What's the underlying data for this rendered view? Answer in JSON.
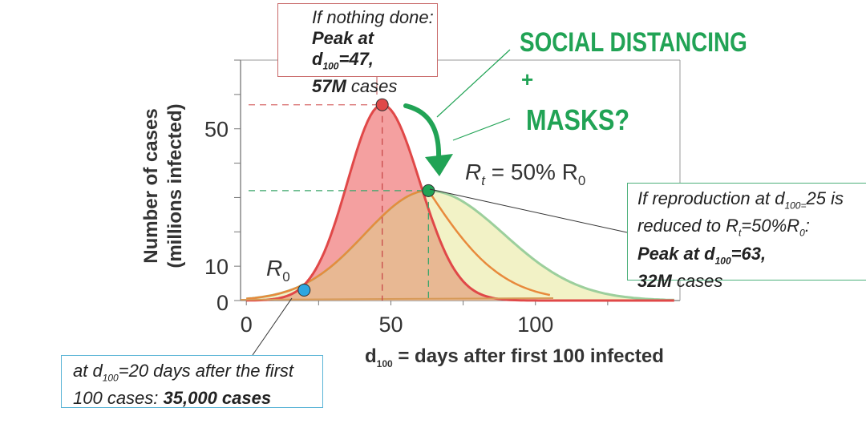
{
  "chart_data": {
    "type": "line",
    "xlabel_prefix": "d",
    "xlabel_sub": "100",
    "xlabel_rest": " = days after first 100 infected",
    "ylabel_line1": "Number of cases",
    "ylabel_line2": "(millions infected)",
    "xlim": [
      -2,
      150
    ],
    "ylim": [
      0,
      70
    ],
    "x_ticks": [
      0,
      50,
      100
    ],
    "y_ticks": [
      0,
      10,
      50
    ],
    "colors": {
      "nothing_done": "#e04848",
      "nothing_done_fill": "#f4a0a0",
      "reduced": "#9ccf9c",
      "reduced_fill": "#f2f2c6",
      "overlap": "#e8b893",
      "orange_curve": "#e88a3c",
      "green": "#21a355",
      "point_blue": "#2ea6e0"
    },
    "series": [
      {
        "key": "nothing_done",
        "peak_day": 47,
        "peak_cases": 57
      },
      {
        "key": "reduced",
        "peak_day": 63,
        "peak_cases": 32
      }
    ],
    "points": [
      {
        "key": "peak_nothing",
        "x": 47,
        "y": 57
      },
      {
        "key": "peak_reduced",
        "x": 63,
        "y": 32
      },
      {
        "key": "r0_point",
        "x": 20,
        "y": 0.035
      }
    ]
  },
  "annotations": {
    "r0_label": "R",
    "r0_sub": "0",
    "rt_label": "R",
    "rt_sub": "t",
    "rt_eq": " = 50% R",
    "rt_eq_sub": "0",
    "social_distancing": "SOCIAL DISTANCING",
    "plus": "+",
    "masks": "MASKS?",
    "top_box": {
      "line1": "If nothing done:",
      "line2_prefix": "Peak at d",
      "line2_sub": "100",
      "line2_suffix": "=47,",
      "line3_bold": "57M",
      "line3_rest": " cases"
    },
    "right_box": {
      "line1_prefix": "If reproduction at d",
      "line1_sub": "100=",
      "line1_suffix": "25 is",
      "line2_prefix": "reduced to R",
      "line2_sub1": "t",
      "line2_mid": "=50%R",
      "line2_sub2": "0",
      "line2_suffix": ":",
      "line3_prefix": "Peak at d",
      "line3_sub": "100",
      "line3_suffix": "=63,",
      "line4_bold": "32M",
      "line4_rest": " cases"
    },
    "bottom_box": {
      "line1_prefix": "at d",
      "line1_sub": "100",
      "line1_suffix": "=20 days after the first",
      "line2_prefix": "100 cases: ",
      "line2_bold": "35,000 cases"
    }
  }
}
